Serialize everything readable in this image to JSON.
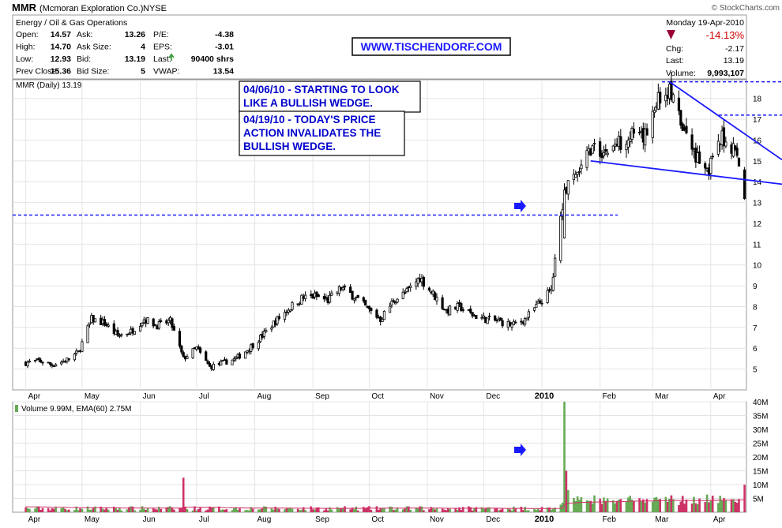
{
  "header": {
    "symbol": "MMR",
    "company": "(Mcmoran Exploration Co.)",
    "exchange": "NYSE",
    "copyright": "© StockCharts.com",
    "sector": "Energy / Oil & Gas Operations",
    "date": "Monday  19-Apr-2010",
    "url_banner": "WWW.TISCHENDORF.COM",
    "quote_left": [
      {
        "l1": "Open:",
        "v1": "14.57",
        "l2": "Ask:",
        "v2": "13.26",
        "l3": "P/E:",
        "v3": "-4.38"
      },
      {
        "l1": "High:",
        "v1": "14.70",
        "l2": "Ask Size:",
        "v2": "4",
        "l3": "EPS:",
        "v3": "-3.01"
      },
      {
        "l1": "Low:",
        "v1": "12.93",
        "l2": "Bid:",
        "v2": "13.19",
        "l3": "Last:",
        "v3": "90400 shrs"
      },
      {
        "l1": "Prev Close:",
        "v1": "15.36",
        "l2": "Bid Size:",
        "v2": "5",
        "l3": "VWAP:",
        "v3": "13.54"
      }
    ],
    "quote_right": {
      "pct_change": "-14.13%",
      "chg_label": "Chg:",
      "chg_value": "-2.17",
      "last_label": "Last:",
      "last_value": "13.19",
      "volume_label": "Volume:",
      "volume_value": "9,993,107"
    }
  },
  "colors": {
    "up": "#000000",
    "down": "#000000",
    "trendline": "#1a1aff",
    "annotation_text": "#0000cc",
    "volume_up": "#66aa55",
    "volume_down": "#cc3366",
    "down_arrow": "#990033"
  },
  "annotations": [
    "04/06/10 - STARTING TO LOOK LIKE A BULLISH WEDGE.",
    "04/19/10 - TODAY'S PRICE ACTION INVALIDATES THE BULLISH WEDGE."
  ],
  "chart_data": [
    {
      "type": "candlestick",
      "title": "MMR (Daily) 13.19",
      "x_tick_labels": [
        "Apr",
        "May",
        "Jun",
        "Jul",
        "Aug",
        "Sep",
        "Oct",
        "Nov",
        "Dec",
        "2010",
        "Feb",
        "Mar",
        "Apr"
      ],
      "y_ticks": [
        5,
        6,
        7,
        8,
        9,
        10,
        11,
        12,
        13,
        14,
        15,
        16,
        17,
        18
      ],
      "ylim": [
        4.0,
        18.9
      ],
      "grid": true,
      "approximate_weekly_closes": [
        [
          "2009-04-01",
          5.3
        ],
        [
          "2009-04-08",
          5.4
        ],
        [
          "2009-04-15",
          5.2
        ],
        [
          "2009-04-22",
          5.4
        ],
        [
          "2009-04-29",
          5.8
        ],
        [
          "2009-05-06",
          7.4
        ],
        [
          "2009-05-13",
          7.2
        ],
        [
          "2009-05-20",
          6.6
        ],
        [
          "2009-05-27",
          6.8
        ],
        [
          "2009-06-03",
          7.4
        ],
        [
          "2009-06-10",
          7.1
        ],
        [
          "2009-06-17",
          7.3
        ],
        [
          "2009-06-24",
          5.5
        ],
        [
          "2009-07-01",
          6.0
        ],
        [
          "2009-07-08",
          5.1
        ],
        [
          "2009-07-15",
          5.3
        ],
        [
          "2009-07-22",
          5.5
        ],
        [
          "2009-07-29",
          6.0
        ],
        [
          "2009-08-05",
          6.6
        ],
        [
          "2009-08-12",
          7.3
        ],
        [
          "2009-08-19",
          7.9
        ],
        [
          "2009-08-26",
          8.4
        ],
        [
          "2009-09-02",
          8.5
        ],
        [
          "2009-09-09",
          8.3
        ],
        [
          "2009-09-16",
          8.9
        ],
        [
          "2009-09-23",
          8.5
        ],
        [
          "2009-09-30",
          7.9
        ],
        [
          "2009-10-07",
          7.4
        ],
        [
          "2009-10-14",
          8.3
        ],
        [
          "2009-10-21",
          8.7
        ],
        [
          "2009-10-28",
          9.4
        ],
        [
          "2009-11-04",
          8.6
        ],
        [
          "2009-11-11",
          7.8
        ],
        [
          "2009-11-18",
          8.0
        ],
        [
          "2009-11-25",
          7.6
        ],
        [
          "2009-12-02",
          7.4
        ],
        [
          "2009-12-09",
          7.3
        ],
        [
          "2009-12-16",
          7.1
        ],
        [
          "2009-12-23",
          7.4
        ],
        [
          "2009-12-30",
          8.1
        ],
        [
          "2010-01-06",
          8.8
        ],
        [
          "2010-01-13",
          13.5
        ],
        [
          "2010-01-20",
          14.3
        ],
        [
          "2010-01-27",
          15.6
        ],
        [
          "2010-02-03",
          15.4
        ],
        [
          "2010-02-10",
          15.8
        ],
        [
          "2010-02-17",
          16.3
        ],
        [
          "2010-02-24",
          16.0
        ],
        [
          "2010-03-03",
          17.9
        ],
        [
          "2010-03-10",
          18.4
        ],
        [
          "2010-03-17",
          16.5
        ],
        [
          "2010-03-24",
          15.3
        ],
        [
          "2010-03-31",
          14.6
        ],
        [
          "2010-04-07",
          16.1
        ],
        [
          "2010-04-14",
          15.6
        ],
        [
          "2010-04-19",
          13.19
        ]
      ],
      "annotation_lines": [
        {
          "kind": "horizontal dashed",
          "y": 12.4
        },
        {
          "kind": "horizontal dashed",
          "y": 18.8
        },
        {
          "kind": "horizontal dashed",
          "y": 17.2
        },
        {
          "kind": "trendline",
          "from": [
            "2010-01-27",
            15.0
          ],
          "to": [
            "2010-04-19",
            14.1
          ]
        },
        {
          "kind": "trendline",
          "from": [
            "2010-03-10",
            18.8
          ],
          "to": [
            "2010-04-19",
            16.3
          ]
        }
      ]
    },
    {
      "type": "bar",
      "title": "Volume 9.99M, EMA(60) 2.75M",
      "y_tick_labels": [
        "5M",
        "10M",
        "15M",
        "20M",
        "25M",
        "30M",
        "35M",
        "40M"
      ],
      "ylim": [
        0,
        40
      ],
      "unit": "millions of shares",
      "approximate_notable_volumes": [
        [
          "2009-06-24",
          12.5
        ],
        [
          "2010-01-13",
          40.0
        ],
        [
          "2010-01-14",
          15.0
        ],
        [
          "2010-01-15",
          8.0
        ],
        [
          "2010-04-19",
          9.99
        ]
      ],
      "series": [
        {
          "name": "Volume",
          "type": "bar"
        },
        {
          "name": "EMA(60)",
          "type": "line",
          "last_value": 2.75
        }
      ]
    }
  ]
}
